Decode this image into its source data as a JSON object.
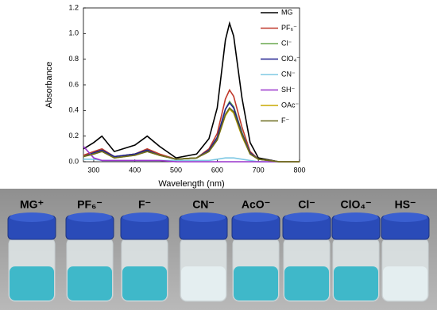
{
  "chart_data": {
    "type": "line",
    "x_label": "Wavelength (nm)",
    "y_label": "Absorbance",
    "x": [
      275,
      300,
      320,
      350,
      400,
      430,
      460,
      500,
      550,
      580,
      600,
      620,
      630,
      640,
      660,
      680,
      700,
      750,
      800
    ],
    "xlim": [
      275,
      800
    ],
    "xticks": [
      300,
      400,
      500,
      600,
      700,
      800
    ],
    "ylim": [
      0,
      1.2
    ],
    "yticks": [
      {
        "value": 0,
        "label": "0.0"
      },
      0.2,
      0.4,
      0.6,
      0.8,
      {
        "value": 1,
        "label": "1.0"
      },
      1.2
    ],
    "legend": "upper right",
    "series": [
      {
        "name": "MG",
        "color": "#000000",
        "values": [
          0.1,
          0.15,
          0.2,
          0.08,
          0.13,
          0.2,
          0.12,
          0.03,
          0.06,
          0.18,
          0.42,
          0.95,
          1.08,
          0.98,
          0.5,
          0.15,
          0.03,
          0,
          0
        ]
      },
      {
        "name": "PF₆⁻",
        "color": "#c0392b",
        "values": [
          0.05,
          0.08,
          0.1,
          0.04,
          0.06,
          0.1,
          0.06,
          0.02,
          0.03,
          0.1,
          0.22,
          0.49,
          0.56,
          0.51,
          0.27,
          0.08,
          0.02,
          0,
          0
        ]
      },
      {
        "name": "Cl⁻",
        "color": "#6aa84f",
        "values": [
          0.04,
          0.07,
          0.09,
          0.04,
          0.06,
          0.09,
          0.05,
          0.02,
          0.03,
          0.09,
          0.19,
          0.41,
          0.47,
          0.43,
          0.23,
          0.07,
          0.02,
          0,
          0
        ]
      },
      {
        "name": "ClO₄⁻",
        "color": "#1f1f8f",
        "values": [
          0.04,
          0.07,
          0.09,
          0.04,
          0.06,
          0.09,
          0.05,
          0.02,
          0.03,
          0.09,
          0.19,
          0.41,
          0.46,
          0.42,
          0.22,
          0.07,
          0.02,
          0,
          0
        ]
      },
      {
        "name": "CN⁻",
        "color": "#7ec8e3",
        "values": [
          0.02,
          0.02,
          0.01,
          0.01,
          0.01,
          0.01,
          0.01,
          0.01,
          0.01,
          0.01,
          0.02,
          0.03,
          0.03,
          0.03,
          0.02,
          0.01,
          0,
          0,
          0
        ]
      },
      {
        "name": "SH⁻",
        "color": "#9933cc",
        "values": [
          0.12,
          0.03,
          0.01,
          0.01,
          0.01,
          0.01,
          0.01,
          0,
          0,
          0,
          0,
          0,
          0,
          0,
          0,
          0,
          0,
          0,
          0
        ]
      },
      {
        "name": "OAc⁻",
        "color": "#c9a800",
        "values": [
          0.04,
          0.06,
          0.08,
          0.03,
          0.05,
          0.08,
          0.05,
          0.02,
          0.03,
          0.08,
          0.17,
          0.36,
          0.41,
          0.38,
          0.2,
          0.06,
          0.02,
          0,
          0
        ]
      },
      {
        "name": "F⁻",
        "color": "#6b6b1e",
        "values": [
          0.04,
          0.06,
          0.08,
          0.03,
          0.05,
          0.08,
          0.05,
          0.02,
          0.03,
          0.08,
          0.17,
          0.37,
          0.42,
          0.39,
          0.21,
          0.06,
          0.02,
          0,
          0
        ]
      }
    ]
  },
  "photo": {
    "vials": [
      {
        "label": "MG⁺",
        "liquid": "#3fb8c9"
      },
      {
        "label": "PF₆⁻",
        "liquid": "#3fb8c9"
      },
      {
        "label": "F⁻",
        "liquid": "#3fb8c9"
      },
      {
        "label": "CN⁻",
        "liquid": "#e4eef0"
      },
      {
        "label": "AcO⁻",
        "liquid": "#3fb8c9"
      },
      {
        "label": "Cl⁻",
        "liquid": "#3fb8c9"
      },
      {
        "label": "ClO₄⁻",
        "liquid": "#3fb8c9"
      },
      {
        "label": "HS⁻",
        "liquid": "#e4eef0"
      }
    ]
  }
}
